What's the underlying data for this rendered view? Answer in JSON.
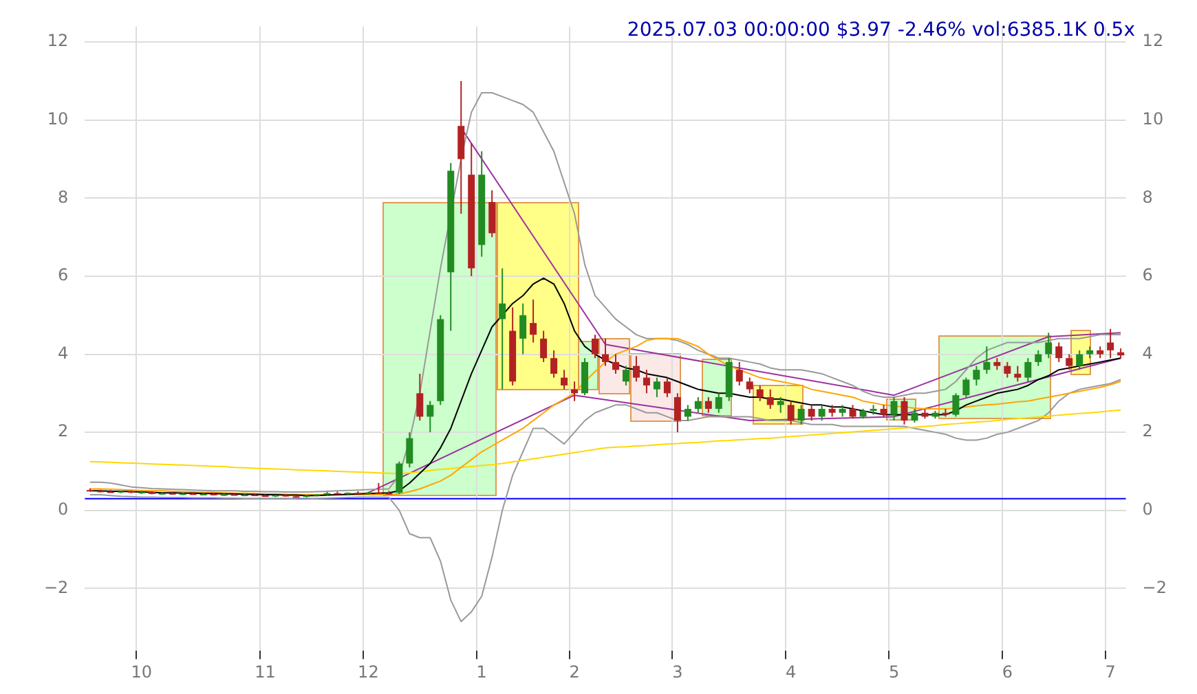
{
  "chart_data": {
    "type": "candlestick",
    "title": "2025.07.03 00:00:00 $3.97 -2.46% vol:6385.1K 0.5x",
    "categories": [
      null,
      null,
      null,
      null,
      null,
      "10",
      null,
      null,
      null,
      null,
      null,
      null,
      null,
      null,
      null,
      null,
      null,
      "11",
      null,
      null,
      null,
      null,
      null,
      null,
      null,
      null,
      null,
      "12",
      null,
      null,
      null,
      null,
      null,
      null,
      null,
      null,
      null,
      null,
      "1",
      null,
      null,
      null,
      null,
      null,
      null,
      null,
      null,
      "2",
      null,
      null,
      null,
      null,
      null,
      null,
      null,
      null,
      null,
      "3",
      null,
      null,
      null,
      null,
      null,
      null,
      null,
      null,
      null,
      null,
      "4",
      null,
      null,
      null,
      null,
      null,
      null,
      null,
      null,
      null,
      "5",
      null,
      null,
      null,
      null,
      null,
      null,
      null,
      null,
      null,
      null,
      "6",
      null,
      null,
      null,
      null,
      null,
      null,
      null,
      null,
      null,
      "7",
      null
    ],
    "ohlc": [
      [
        0.52,
        0.56,
        0.48,
        0.5
      ],
      [
        0.5,
        0.53,
        0.46,
        0.48
      ],
      [
        0.48,
        0.52,
        0.45,
        0.47
      ],
      [
        0.47,
        0.5,
        0.44,
        0.49
      ],
      [
        0.49,
        0.51,
        0.44,
        0.45
      ],
      [
        0.45,
        0.5,
        0.42,
        0.47
      ],
      [
        0.47,
        0.49,
        0.41,
        0.42
      ],
      [
        0.42,
        0.46,
        0.4,
        0.44
      ],
      [
        0.44,
        0.46,
        0.4,
        0.41
      ],
      [
        0.41,
        0.45,
        0.39,
        0.43
      ],
      [
        0.43,
        0.46,
        0.4,
        0.41
      ],
      [
        0.41,
        0.44,
        0.39,
        0.42
      ],
      [
        0.42,
        0.45,
        0.38,
        0.39
      ],
      [
        0.39,
        0.43,
        0.37,
        0.41
      ],
      [
        0.41,
        0.44,
        0.38,
        0.38
      ],
      [
        0.38,
        0.42,
        0.36,
        0.4
      ],
      [
        0.4,
        0.43,
        0.37,
        0.38
      ],
      [
        0.38,
        0.41,
        0.35,
        0.37
      ],
      [
        0.37,
        0.4,
        0.34,
        0.39
      ],
      [
        0.39,
        0.42,
        0.35,
        0.36
      ],
      [
        0.36,
        0.39,
        0.33,
        0.35
      ],
      [
        0.35,
        0.4,
        0.33,
        0.38
      ],
      [
        0.38,
        0.42,
        0.36,
        0.41
      ],
      [
        0.41,
        0.47,
        0.39,
        0.44
      ],
      [
        0.44,
        0.48,
        0.4,
        0.42
      ],
      [
        0.42,
        0.46,
        0.39,
        0.45
      ],
      [
        0.45,
        0.49,
        0.42,
        0.43
      ],
      [
        0.43,
        0.48,
        0.41,
        0.46
      ],
      [
        0.46,
        0.7,
        0.43,
        0.44
      ],
      [
        0.44,
        0.5,
        0.4,
        0.42
      ],
      [
        0.45,
        1.25,
        0.42,
        1.2
      ],
      [
        1.2,
        2,
        1.1,
        1.85
      ],
      [
        3,
        3.5,
        2.3,
        2.4
      ],
      [
        2.4,
        2.8,
        2,
        2.7
      ],
      [
        2.8,
        5,
        2.7,
        4.9
      ],
      [
        6.1,
        8.9,
        4.6,
        8.7
      ],
      [
        9.85,
        11,
        7.6,
        9
      ],
      [
        8.6,
        9.4,
        6,
        6.2
      ],
      [
        6.8,
        9.2,
        6.5,
        8.6
      ],
      [
        7.9,
        8.2,
        7,
        7.1
      ],
      [
        4.9,
        6.2,
        3.1,
        5.3
      ],
      [
        4.6,
        5.2,
        3.2,
        3.3
      ],
      [
        4.4,
        5.3,
        4,
        5
      ],
      [
        4.8,
        5.4,
        4.3,
        4.5
      ],
      [
        4.4,
        4.6,
        3.8,
        3.9
      ],
      [
        3.9,
        4.1,
        3.4,
        3.5
      ],
      [
        3.4,
        3.6,
        3.1,
        3.2
      ],
      [
        3.1,
        3.3,
        2.8,
        3
      ],
      [
        3,
        3.9,
        2.95,
        3.8
      ],
      [
        4.4,
        4.5,
        3.9,
        4
      ],
      [
        4,
        4.4,
        3.7,
        3.8
      ],
      [
        3.8,
        4,
        3.5,
        3.6
      ],
      [
        3.3,
        3.7,
        3.2,
        3.6
      ],
      [
        3.7,
        3.95,
        3.3,
        3.4
      ],
      [
        3.4,
        3.6,
        3,
        3.2
      ],
      [
        3.1,
        3.4,
        2.9,
        3.3
      ],
      [
        3.3,
        3.4,
        2.9,
        3
      ],
      [
        2.9,
        3,
        2,
        2.3
      ],
      [
        2.4,
        2.7,
        2.3,
        2.6
      ],
      [
        2.6,
        2.9,
        2.5,
        2.8
      ],
      [
        2.8,
        2.9,
        2.5,
        2.6
      ],
      [
        2.6,
        3,
        2.5,
        2.9
      ],
      [
        2.9,
        3.9,
        2.8,
        3.8
      ],
      [
        3.6,
        3.8,
        3.2,
        3.3
      ],
      [
        3.3,
        3.4,
        3,
        3.1
      ],
      [
        3.1,
        3.2,
        2.8,
        2.9
      ],
      [
        2.9,
        3.1,
        2.6,
        2.7
      ],
      [
        2.7,
        2.9,
        2.5,
        2.8
      ],
      [
        2.7,
        2.8,
        2.2,
        2.3
      ],
      [
        2.3,
        2.7,
        2.2,
        2.6
      ],
      [
        2.6,
        2.7,
        2.3,
        2.4
      ],
      [
        2.4,
        2.7,
        2.3,
        2.6
      ],
      [
        2.6,
        2.7,
        2.4,
        2.5
      ],
      [
        2.5,
        2.7,
        2.4,
        2.6
      ],
      [
        2.6,
        2.7,
        2.35,
        2.4
      ],
      [
        2.4,
        2.6,
        2.35,
        2.55
      ],
      [
        2.55,
        2.7,
        2.45,
        2.6
      ],
      [
        2.6,
        2.7,
        2.4,
        2.45
      ],
      [
        2.45,
        2.9,
        2.3,
        2.8
      ],
      [
        2.8,
        2.9,
        2.2,
        2.3
      ],
      [
        2.3,
        2.6,
        2.25,
        2.5
      ],
      [
        2.5,
        2.6,
        2.35,
        2.4
      ],
      [
        2.4,
        2.55,
        2.35,
        2.5
      ],
      [
        2.5,
        2.6,
        2.4,
        2.45
      ],
      [
        2.45,
        3,
        2.4,
        2.95
      ],
      [
        2.95,
        3.4,
        2.9,
        3.35
      ],
      [
        3.35,
        3.7,
        3.2,
        3.6
      ],
      [
        3.6,
        4.2,
        3.5,
        3.8
      ],
      [
        3.8,
        3.9,
        3.6,
        3.7
      ],
      [
        3.7,
        3.8,
        3.4,
        3.5
      ],
      [
        3.5,
        3.7,
        3.3,
        3.4
      ],
      [
        3.4,
        3.9,
        3.3,
        3.8
      ],
      [
        3.8,
        4.1,
        3.7,
        4
      ],
      [
        4,
        4.55,
        3.9,
        4.3
      ],
      [
        4.2,
        4.3,
        3.8,
        3.9
      ],
      [
        3.9,
        4,
        3.6,
        3.7
      ],
      [
        3.7,
        4.1,
        3.6,
        4
      ],
      [
        4,
        4.2,
        3.9,
        4.1
      ],
      [
        4.1,
        4.2,
        3.9,
        4
      ],
      [
        4.3,
        4.65,
        3.9,
        4.1
      ],
      [
        4.05,
        4.15,
        3.9,
        3.97
      ]
    ],
    "series": [
      {
        "type": "line",
        "color": "#000000",
        "values": [
          0.5,
          0.5,
          0.49,
          0.49,
          0.48,
          0.47,
          0.46,
          0.45,
          0.45,
          0.44,
          0.44,
          0.43,
          0.43,
          0.42,
          0.42,
          0.41,
          0.41,
          0.4,
          0.4,
          0.39,
          0.39,
          0.38,
          0.38,
          0.39,
          0.4,
          0.41,
          0.42,
          0.43,
          0.44,
          0.45,
          0.5,
          0.7,
          0.95,
          1.2,
          1.6,
          2.1,
          2.8,
          3.5,
          4.1,
          4.7,
          5,
          5.3,
          5.5,
          5.8,
          5.95,
          5.8,
          5.3,
          4.6,
          4.2,
          4,
          3.85,
          3.75,
          3.65,
          3.6,
          3.5,
          3.45,
          3.4,
          3.3,
          3.2,
          3.1,
          3.05,
          3,
          3,
          2.95,
          2.9,
          2.9,
          2.85,
          2.85,
          2.8,
          2.75,
          2.7,
          2.7,
          2.65,
          2.65,
          2.6,
          2.55,
          2.5,
          2.45,
          2.45,
          2.45,
          2.45,
          2.45,
          2.45,
          2.45,
          2.55,
          2.7,
          2.8,
          2.9,
          3,
          3.05,
          3.1,
          3.2,
          3.35,
          3.45,
          3.6,
          3.65,
          3.7,
          3.75,
          3.8,
          3.85,
          3.9
        ]
      },
      {
        "type": "line",
        "color": "#ffa500",
        "values": [
          0.55,
          0.55,
          0.54,
          0.53,
          0.52,
          0.51,
          0.5,
          0.5,
          0.49,
          0.48,
          0.47,
          0.46,
          0.46,
          0.45,
          0.44,
          0.44,
          0.43,
          0.42,
          0.42,
          0.41,
          0.41,
          0.4,
          0.4,
          0.4,
          0.4,
          0.4,
          0.4,
          0.4,
          0.4,
          0.4,
          0.42,
          0.48,
          0.55,
          0.65,
          0.75,
          0.9,
          1.1,
          1.3,
          1.5,
          1.65,
          1.8,
          1.95,
          2.1,
          2.3,
          2.5,
          2.7,
          2.85,
          3,
          3.3,
          3.55,
          3.8,
          4,
          4.1,
          4.2,
          4.35,
          4.4,
          4.4,
          4.4,
          4.3,
          4.2,
          4,
          3.85,
          3.7,
          3.6,
          3.5,
          3.4,
          3.35,
          3.3,
          3.25,
          3.2,
          3.1,
          3.05,
          3,
          2.95,
          2.9,
          2.8,
          2.75,
          2.7,
          2.67,
          2.65,
          2.62,
          2.6,
          2.6,
          2.6,
          2.62,
          2.65,
          2.68,
          2.7,
          2.72,
          2.75,
          2.78,
          2.8,
          2.85,
          2.9,
          2.95,
          3,
          3.05,
          3.1,
          3.15,
          3.22,
          3.3
        ]
      },
      {
        "type": "line",
        "color": "#ffd700",
        "values": [
          1.25,
          1.24,
          1.23,
          1.22,
          1.21,
          1.2,
          1.19,
          1.18,
          1.17,
          1.16,
          1.15,
          1.14,
          1.13,
          1.12,
          1.1,
          1.09,
          1.08,
          1.07,
          1.06,
          1.05,
          1.04,
          1.03,
          1.02,
          1.01,
          1,
          0.99,
          0.98,
          0.97,
          0.96,
          0.95,
          0.94,
          0.96,
          0.99,
          1.02,
          1.05,
          1.07,
          1.1,
          1.12,
          1.15,
          1.17,
          1.2,
          1.24,
          1.28,
          1.32,
          1.36,
          1.4,
          1.44,
          1.48,
          1.52,
          1.56,
          1.6,
          1.62,
          1.63,
          1.65,
          1.66,
          1.68,
          1.7,
          1.71,
          1.73,
          1.74,
          1.76,
          1.78,
          1.79,
          1.81,
          1.82,
          1.84,
          1.85,
          1.87,
          1.89,
          1.91,
          1.93,
          1.95,
          1.97,
          1.99,
          2.01,
          2.03,
          2.05,
          2.07,
          2.09,
          2.11,
          2.13,
          2.15,
          2.17,
          2.2,
          2.22,
          2.24,
          2.26,
          2.28,
          2.3,
          2.33,
          2.35,
          2.37,
          2.39,
          2.41,
          2.44,
          2.46,
          2.48,
          2.5,
          2.52,
          2.55,
          2.57
        ]
      },
      {
        "type": "line",
        "color": "#999999",
        "values": [
          0.72,
          0.72,
          0.7,
          0.65,
          0.6,
          0.58,
          0.56,
          0.55,
          0.54,
          0.53,
          0.52,
          0.51,
          0.5,
          0.5,
          0.5,
          0.49,
          0.49,
          0.48,
          0.48,
          0.47,
          0.47,
          0.47,
          0.48,
          0.49,
          0.5,
          0.51,
          0.52,
          0.53,
          0.54,
          0.55,
          0.9,
          1.8,
          3,
          4.6,
          6.2,
          null,
          9,
          10.2,
          10.7,
          10.7,
          10.6,
          10.5,
          10.4,
          10.2,
          9.7,
          9.2,
          8.4,
          7.6,
          6.3,
          5.5,
          5.2,
          4.9,
          4.7,
          4.5,
          4.4,
          4.4,
          4.4,
          4.35,
          4.25,
          4.1,
          4,
          3.9,
          3.9,
          3.85,
          3.8,
          3.75,
          3.65,
          3.6,
          3.6,
          3.6,
          3.55,
          3.5,
          3.4,
          3.3,
          3.2,
          3.05,
          2.95,
          2.9,
          2.9,
          2.95,
          3,
          3,
          3.05,
          3.1,
          3.3,
          3.6,
          3.9,
          4.1,
          4.2,
          4.3,
          4.3,
          4.3,
          4.3,
          4.35,
          4.4,
          4.4,
          4.4,
          4.45,
          4.5,
          4.5,
          4.5
        ]
      },
      {
        "type": "line",
        "color": "#999999",
        "values": [
          0.4,
          0.4,
          0.38,
          0.36,
          0.35,
          0.34,
          0.34,
          0.33,
          0.33,
          0.33,
          0.32,
          0.32,
          0.32,
          0.31,
          0.31,
          0.3,
          0.3,
          0.3,
          0.3,
          0.3,
          0.29,
          0.29,
          0.3,
          0.31,
          0.32,
          0.33,
          0.34,
          0.34,
          0.34,
          0.33,
          0,
          -0.6,
          -0.7,
          -0.7,
          -1.3,
          -2.3,
          -2.85,
          -2.6,
          -2.2,
          -1.2,
          0,
          0.9,
          1.5,
          2.1,
          2.1,
          1.9,
          1.7,
          2,
          2.3,
          2.5,
          2.6,
          2.7,
          2.7,
          2.6,
          2.5,
          2.5,
          2.4,
          2.3,
          2.3,
          2.35,
          2.4,
          2.4,
          2.4,
          2.4,
          2.4,
          2.35,
          2.3,
          2.3,
          2.3,
          2.25,
          2.2,
          2.2,
          2.2,
          2.15,
          2.15,
          2.15,
          2.15,
          2.15,
          2.15,
          2.15,
          2.1,
          2.05,
          2,
          1.95,
          1.85,
          1.8,
          1.8,
          1.85,
          1.95,
          2,
          2.1,
          2.2,
          2.3,
          2.5,
          2.8,
          3,
          3.1,
          3.15,
          3.2,
          3.25,
          3.35
        ]
      },
      {
        "type": "line",
        "color": "#9b30a0",
        "values": [
          null,
          null,
          null,
          null,
          null,
          null,
          null,
          null,
          null,
          null,
          null,
          null,
          null,
          null,
          null,
          null,
          null,
          null,
          null,
          null,
          null,
          null,
          null,
          null,
          null,
          null,
          null,
          null,
          null,
          null,
          null,
          null,
          null,
          null,
          null,
          null,
          9.8,
          null,
          null,
          null,
          null,
          null,
          null,
          null,
          null,
          null,
          null,
          null,
          null,
          null,
          4.25,
          null,
          null,
          null,
          null,
          null,
          null,
          null,
          null,
          null,
          null,
          null,
          null,
          null,
          null,
          null,
          null,
          null,
          null,
          null,
          null,
          null,
          null,
          null,
          null,
          null,
          null,
          null,
          2.95,
          null,
          null,
          null,
          null,
          null,
          null,
          null,
          null,
          null,
          null,
          null,
          null,
          null,
          null,
          4.45,
          null,
          null,
          null,
          null,
          null,
          null,
          4.55
        ]
      },
      {
        "type": "line",
        "color": "#9b30a0",
        "values": [
          null,
          null,
          null,
          null,
          null,
          null,
          null,
          null,
          null,
          null,
          null,
          null,
          null,
          null,
          null,
          null,
          null,
          null,
          null,
          null,
          null,
          null,
          null,
          null,
          null,
          null,
          null,
          0.45,
          null,
          null,
          null,
          null,
          null,
          null,
          null,
          null,
          null,
          null,
          null,
          null,
          null,
          null,
          null,
          null,
          null,
          null,
          null,
          2.95,
          null,
          null,
          null,
          null,
          null,
          null,
          null,
          null,
          null,
          null,
          null,
          null,
          null,
          null,
          null,
          null,
          2.3,
          null,
          null,
          null,
          null,
          null,
          null,
          null,
          null,
          null,
          null,
          null,
          null,
          null,
          2.4,
          null,
          null,
          null,
          null,
          null,
          null,
          null,
          null,
          null,
          null,
          null,
          null,
          null,
          null,
          null,
          null,
          null,
          null,
          null,
          null,
          null,
          3.9
        ]
      }
    ],
    "ylim": [
      -3.6,
      12.4
    ],
    "yticks": [
      {
        "value": -2,
        "label": "−2"
      },
      0,
      2,
      4,
      6,
      8,
      10,
      12
    ],
    "y2lim": [
      -3.6,
      12.4
    ],
    "y2ticks": [
      {
        "value": -2,
        "label": "−2"
      },
      0,
      2,
      4,
      6,
      8,
      10,
      12
    ],
    "ref_lines": [
      {
        "axis": "y",
        "value": 0.3,
        "color": "#0000ff"
      }
    ],
    "grid": true,
    "legend": false
  }
}
